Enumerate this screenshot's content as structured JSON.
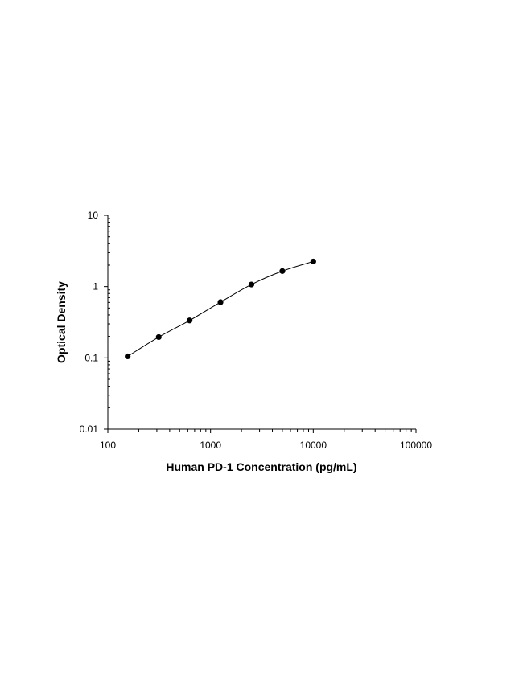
{
  "chart_data": {
    "type": "scatter",
    "title": "",
    "xlabel": "Human PD-1 Concentration (pg/mL)",
    "ylabel": "Optical Density",
    "x_scale": "log",
    "y_scale": "log",
    "xlim": [
      100,
      100000
    ],
    "ylim": [
      0.01,
      10
    ],
    "x_ticks": [
      {
        "value": 100,
        "label": "100"
      },
      {
        "value": 1000,
        "label": "1000"
      },
      {
        "value": 10000,
        "label": "10000"
      },
      {
        "value": 100000,
        "label": "100000"
      }
    ],
    "y_ticks": [
      {
        "value": 0.01,
        "label": "0.01"
      },
      {
        "value": 0.1,
        "label": "0.1"
      },
      {
        "value": 1,
        "label": "1"
      },
      {
        "value": 10,
        "label": "10"
      }
    ],
    "grid": false,
    "legend": "none",
    "series": [
      {
        "x": [
          156,
          313,
          625,
          1250,
          2500,
          5000,
          10000
        ],
        "y": [
          0.105,
          0.196,
          0.335,
          0.605,
          1.07,
          1.65,
          2.25
        ],
        "marker": "circle",
        "fit_curve": true,
        "color": "#000000"
      }
    ]
  }
}
